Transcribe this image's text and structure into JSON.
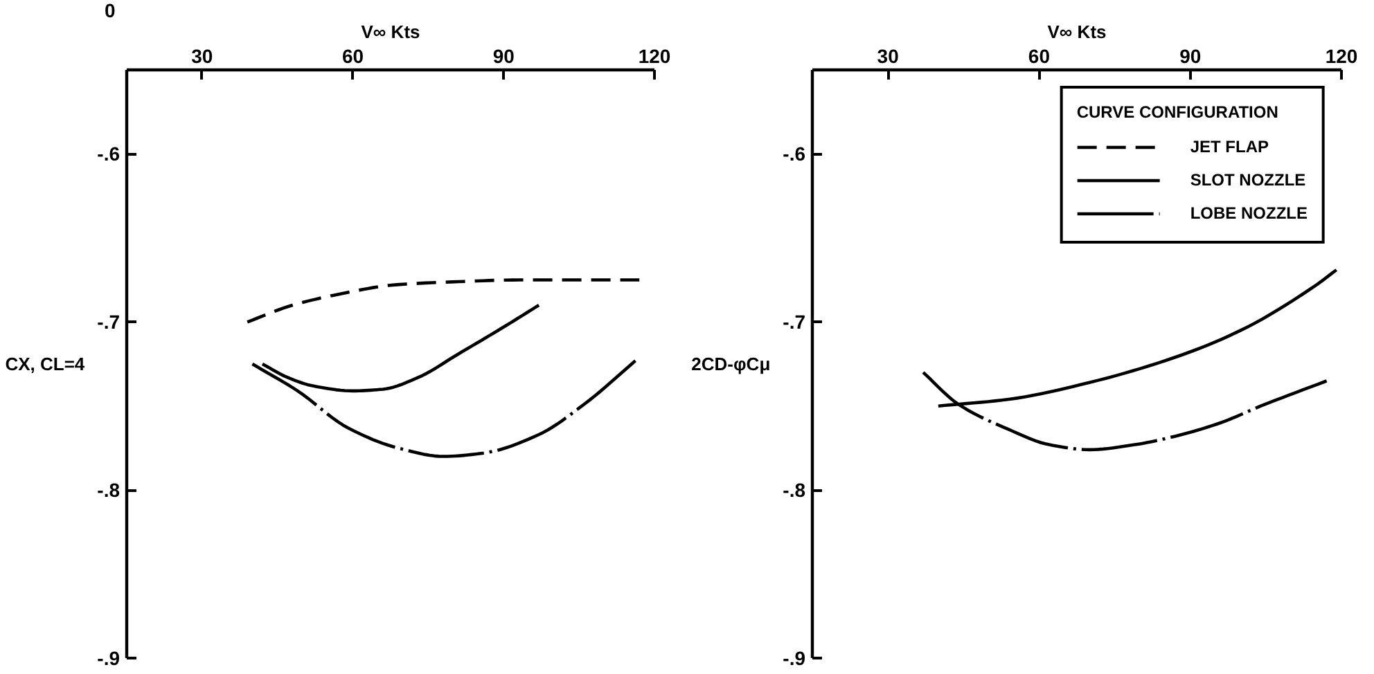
{
  "chart_data": [
    {
      "type": "line",
      "xlabel": "V∞ Kts",
      "ylabel": "CX, CL=4",
      "xlim": [
        15,
        120
      ],
      "ylim": [
        -0.9,
        -0.55
      ],
      "xticks": [
        30,
        60,
        90,
        120
      ],
      "yticks": [
        {
          "value": -0.6,
          "label": "-.6"
        },
        {
          "value": -0.7,
          "label": "-.7"
        },
        {
          "value": -0.8,
          "label": "-.8"
        },
        {
          "value": -0.9,
          "label": "-.9"
        }
      ],
      "annotations": [
        "0"
      ],
      "series": [
        {
          "color": "#000000",
          "line_style": "dashed",
          "x": [
            39,
            48,
            58,
            68,
            81,
            93,
            106,
            117
          ],
          "values": [
            -0.7,
            -0.69,
            -0.683,
            -0.678,
            -0.676,
            -0.675,
            -0.675,
            -0.675
          ]
        },
        {
          "color": "#000000",
          "line_style": "solid",
          "x": [
            42,
            47,
            52,
            60,
            66,
            73,
            81,
            90,
            97
          ],
          "values": [
            -0.725,
            -0.733,
            -0.738,
            -0.741,
            -0.74,
            -0.733,
            -0.719,
            -0.703,
            -0.69
          ]
        },
        {
          "color": "#000000",
          "line_style": "dashdot",
          "x": [
            40,
            49,
            59,
            69,
            78,
            86,
            97,
            106,
            117
          ],
          "values": [
            -0.725,
            -0.741,
            -0.763,
            -0.775,
            -0.78,
            -0.778,
            -0.767,
            -0.749,
            -0.721
          ]
        }
      ]
    },
    {
      "type": "line",
      "xlabel": "V∞ Kts",
      "ylabel": "2CD-φCμ",
      "xlim": [
        15,
        120
      ],
      "ylim": [
        -0.9,
        -0.55
      ],
      "xticks": [
        30,
        60,
        90,
        120
      ],
      "yticks": [
        {
          "value": -0.6,
          "label": "-.6"
        },
        {
          "value": -0.7,
          "label": "-.7"
        },
        {
          "value": -0.8,
          "label": "-.8"
        },
        {
          "value": -0.9,
          "label": "-.9"
        }
      ],
      "legend": "top right",
      "legend_title": "CURVE CONFIGURATION",
      "series": [
        {
          "name": "JET FLAP",
          "color": "#000000",
          "line_style": "dashed"
        },
        {
          "name": "SLOT NOZZLE",
          "color": "#000000",
          "line_style": "solid",
          "x": [
            40,
            54,
            70,
            87,
            100,
            115,
            119
          ],
          "values": [
            -0.75,
            -0.746,
            -0.736,
            -0.721,
            -0.705,
            -0.678,
            -0.669
          ]
        },
        {
          "name": "LOBE NOZZLE",
          "color": "#000000",
          "line_style": "dashdot",
          "x": [
            37,
            44,
            54,
            62,
            70,
            79,
            87,
            96,
            104,
            118
          ],
          "values": [
            -0.73,
            -0.749,
            -0.764,
            -0.773,
            -0.776,
            -0.773,
            -0.768,
            -0.76,
            -0.75,
            -0.734
          ]
        }
      ]
    }
  ]
}
